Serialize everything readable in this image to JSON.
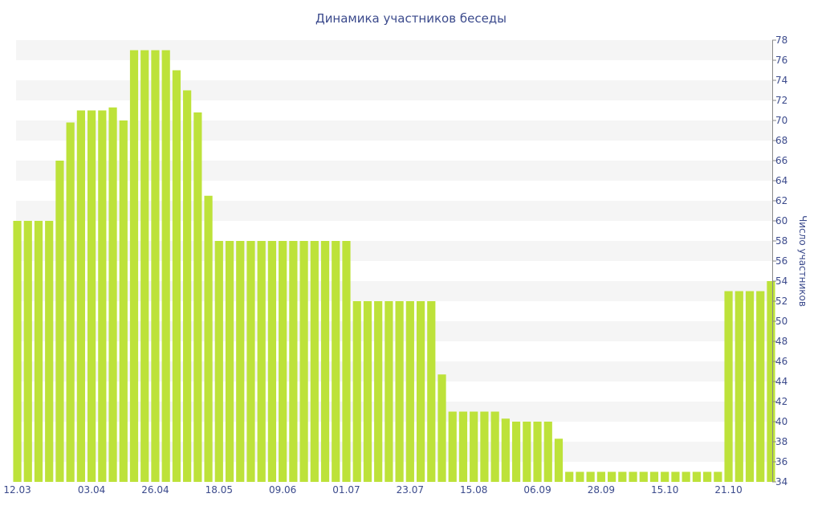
{
  "chart_data": {
    "type": "bar",
    "title": "Динамика участников беседы",
    "xlabel": "",
    "ylabel": "Число участников",
    "ylim": [
      34,
      78
    ],
    "y_axis_side": "right",
    "y_ticks": [
      34,
      36,
      38,
      40,
      42,
      44,
      46,
      48,
      50,
      52,
      54,
      56,
      58,
      60,
      62,
      64,
      66,
      68,
      70,
      72,
      74,
      76,
      78
    ],
    "x_tick_labels": [
      {
        "index": 0,
        "label": "12.03"
      },
      {
        "index": 7,
        "label": "03.04"
      },
      {
        "index": 13,
        "label": "26.04"
      },
      {
        "index": 19,
        "label": "18.05"
      },
      {
        "index": 25,
        "label": "09.06"
      },
      {
        "index": 31,
        "label": "01.07"
      },
      {
        "index": 37,
        "label": "23.07"
      },
      {
        "index": 43,
        "label": "15.08"
      },
      {
        "index": 49,
        "label": "06.09"
      },
      {
        "index": 55,
        "label": "28.09"
      },
      {
        "index": 61,
        "label": "15.10"
      },
      {
        "index": 67,
        "label": "21.10"
      }
    ],
    "values": [
      60,
      60,
      60,
      60,
      66,
      69.8,
      71,
      71,
      71,
      71.3,
      70,
      77,
      77,
      77,
      77,
      75,
      73,
      70.8,
      62.5,
      58,
      58,
      58,
      58,
      58,
      58,
      58,
      58,
      58,
      58,
      58,
      58,
      58,
      52,
      52,
      52,
      52,
      52,
      52,
      52,
      52,
      44.7,
      41,
      41,
      41,
      41,
      41,
      40.3,
      40,
      40,
      40,
      40,
      38.3,
      35,
      35,
      35,
      35,
      35,
      35,
      35,
      35,
      35,
      35,
      35,
      35,
      35,
      35,
      35,
      53,
      53,
      53,
      53,
      54
    ],
    "bar_color": "#bde23a",
    "band_color": "#f5f5f5",
    "text_color": "#3b4a8c",
    "grid": "alternating horizontal bands",
    "legend": "none"
  }
}
